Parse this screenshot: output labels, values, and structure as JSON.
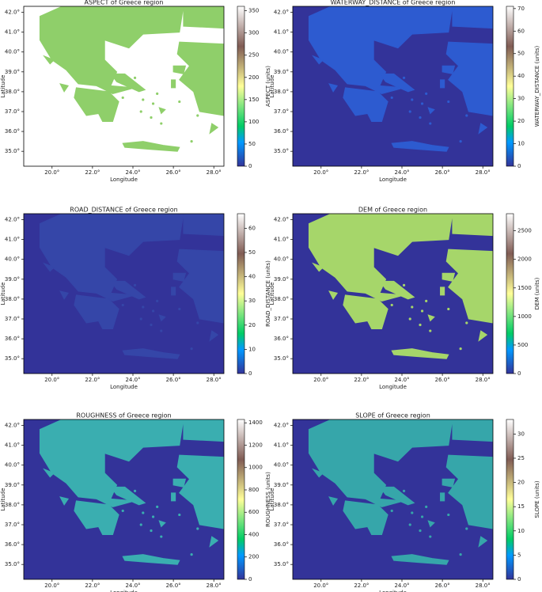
{
  "chart_data": [
    {
      "type": "heatmap",
      "title": "ASPECT of Greece region",
      "x_label": "Longitude",
      "y_label": "Latitude",
      "colorbar_label": "ASPECT (units)",
      "colormap": "terrain",
      "background": "#ffffff",
      "land_color": "#8fcf6a",
      "xlim": [
        18.6,
        28.5
      ],
      "ylim": [
        34.25,
        42.3
      ],
      "xticks": [
        {
          "value": 20,
          "label": "20.0°"
        },
        {
          "value": 22,
          "label": "22.0°"
        },
        {
          "value": 24,
          "label": "24.0°"
        },
        {
          "value": 26,
          "label": "26.0°"
        },
        {
          "value": 28,
          "label": "28.0°"
        }
      ],
      "yticks": [
        {
          "value": 35,
          "label": "35.0°"
        },
        {
          "value": 36,
          "label": "36.0°"
        },
        {
          "value": 37,
          "label": "37.0°"
        },
        {
          "value": 38,
          "label": "38.0°"
        },
        {
          "value": 39,
          "label": "39.0°"
        },
        {
          "value": 40,
          "label": "40.0°"
        },
        {
          "value": 41,
          "label": "41.0°"
        },
        {
          "value": 42,
          "label": "42.0°"
        }
      ],
      "clim": [
        0,
        360
      ],
      "cticks": [
        0,
        50,
        100,
        150,
        200,
        250,
        300,
        350
      ]
    },
    {
      "type": "heatmap",
      "title": "WATERWAY_DISTANCE of Greece region",
      "x_label": "Longitude",
      "y_label": "Latitude",
      "colorbar_label": "WATERWAY_DISTANCE (units)",
      "colormap": "terrain",
      "background": "#333399",
      "land_color": "#2d5bd0",
      "xlim": [
        18.6,
        28.5
      ],
      "ylim": [
        34.25,
        42.3
      ],
      "xticks": [
        {
          "value": 20,
          "label": "20.0°"
        },
        {
          "value": 22,
          "label": "22.0°"
        },
        {
          "value": 24,
          "label": "24.0°"
        },
        {
          "value": 26,
          "label": "26.0°"
        },
        {
          "value": 28,
          "label": "28.0°"
        }
      ],
      "yticks": [
        {
          "value": 35,
          "label": "35.0°"
        },
        {
          "value": 36,
          "label": "36.0°"
        },
        {
          "value": 37,
          "label": "37.0°"
        },
        {
          "value": 38,
          "label": "38.0°"
        },
        {
          "value": 39,
          "label": "39.0°"
        },
        {
          "value": 40,
          "label": "40.0°"
        },
        {
          "value": 41,
          "label": "41.0°"
        },
        {
          "value": 42,
          "label": "42.0°"
        }
      ],
      "clim": [
        0,
        71
      ],
      "cticks": [
        0,
        10,
        20,
        30,
        40,
        50,
        60,
        70
      ]
    },
    {
      "type": "heatmap",
      "title": "ROAD_DISTANCE of Greece region",
      "x_label": "Longitude",
      "y_label": "Latitude",
      "colorbar_label": "ROAD_DISTANCE (units)",
      "colormap": "terrain",
      "background": "#333399",
      "land_color": "#3546a8",
      "xlim": [
        18.6,
        28.5
      ],
      "ylim": [
        34.25,
        42.3
      ],
      "xticks": [
        {
          "value": 20,
          "label": "20.0°"
        },
        {
          "value": 22,
          "label": "22.0°"
        },
        {
          "value": 24,
          "label": "24.0°"
        },
        {
          "value": 26,
          "label": "26.0°"
        },
        {
          "value": 28,
          "label": "28.0°"
        }
      ],
      "yticks": [
        {
          "value": 35,
          "label": "35.0°"
        },
        {
          "value": 36,
          "label": "36.0°"
        },
        {
          "value": 37,
          "label": "37.0°"
        },
        {
          "value": 38,
          "label": "38.0°"
        },
        {
          "value": 39,
          "label": "39.0°"
        },
        {
          "value": 40,
          "label": "40.0°"
        },
        {
          "value": 41,
          "label": "41.0°"
        },
        {
          "value": 42,
          "label": "42.0°"
        }
      ],
      "clim": [
        0,
        66
      ],
      "cticks": [
        0,
        10,
        20,
        30,
        40,
        50,
        60
      ]
    },
    {
      "type": "heatmap",
      "title": "DEM of Greece region",
      "x_label": "Longitude",
      "y_label": "Latitude",
      "colorbar_label": "DEM (units)",
      "colormap": "terrain",
      "background": "#333399",
      "land_color": "#a6d66a",
      "xlim": [
        18.6,
        28.5
      ],
      "ylim": [
        34.25,
        42.3
      ],
      "xticks": [
        {
          "value": 20,
          "label": "20.0°"
        },
        {
          "value": 22,
          "label": "22.0°"
        },
        {
          "value": 24,
          "label": "24.0°"
        },
        {
          "value": 26,
          "label": "26.0°"
        },
        {
          "value": 28,
          "label": "28.0°"
        }
      ],
      "yticks": [
        {
          "value": 35,
          "label": "35.0°"
        },
        {
          "value": 36,
          "label": "36.0°"
        },
        {
          "value": 37,
          "label": "37.0°"
        },
        {
          "value": 38,
          "label": "38.0°"
        },
        {
          "value": 39,
          "label": "39.0°"
        },
        {
          "value": 40,
          "label": "40.0°"
        },
        {
          "value": 41,
          "label": "41.0°"
        },
        {
          "value": 42,
          "label": "42.0°"
        }
      ],
      "clim": [
        0,
        2800
      ],
      "cticks": [
        0,
        500,
        1000,
        1500,
        2000,
        2500
      ]
    },
    {
      "type": "heatmap",
      "title": "ROUGHNESS of Greece region",
      "x_label": "Longitude",
      "y_label": "Latitude",
      "colorbar_label": "ROUGHNESS (units)",
      "colormap": "terrain",
      "background": "#333399",
      "land_color": "#3aaeb0",
      "xlim": [
        18.6,
        28.5
      ],
      "ylim": [
        34.25,
        42.3
      ],
      "xticks": [
        {
          "value": 20,
          "label": "20.0°"
        },
        {
          "value": 22,
          "label": "22.0°"
        },
        {
          "value": 24,
          "label": "24.0°"
        },
        {
          "value": 26,
          "label": "26.0°"
        },
        {
          "value": 28,
          "label": "28.0°"
        }
      ],
      "yticks": [
        {
          "value": 35,
          "label": "35.0°"
        },
        {
          "value": 36,
          "label": "36.0°"
        },
        {
          "value": 37,
          "label": "37.0°"
        },
        {
          "value": 38,
          "label": "38.0°"
        },
        {
          "value": 39,
          "label": "39.0°"
        },
        {
          "value": 40,
          "label": "40.0°"
        },
        {
          "value": 41,
          "label": "41.0°"
        },
        {
          "value": 42,
          "label": "42.0°"
        }
      ],
      "clim": [
        0,
        1430
      ],
      "cticks": [
        0,
        200,
        400,
        600,
        800,
        1000,
        1200,
        1400
      ]
    },
    {
      "type": "heatmap",
      "title": "SLOPE of Greece region",
      "x_label": "Longitude",
      "y_label": "Latitude",
      "colorbar_label": "SLOPE (units)",
      "colormap": "terrain",
      "background": "#333399",
      "land_color": "#36a6aa",
      "xlim": [
        18.6,
        28.5
      ],
      "ylim": [
        34.25,
        42.3
      ],
      "xticks": [
        {
          "value": 20,
          "label": "20.0°"
        },
        {
          "value": 22,
          "label": "22.0°"
        },
        {
          "value": 24,
          "label": "24.0°"
        },
        {
          "value": 26,
          "label": "26.0°"
        },
        {
          "value": 28,
          "label": "28.0°"
        }
      ],
      "yticks": [
        {
          "value": 35,
          "label": "35.0°"
        },
        {
          "value": 36,
          "label": "36.0°"
        },
        {
          "value": 37,
          "label": "37.0°"
        },
        {
          "value": 38,
          "label": "38.0°"
        },
        {
          "value": 39,
          "label": "39.0°"
        },
        {
          "value": 40,
          "label": "40.0°"
        },
        {
          "value": 41,
          "label": "41.0°"
        },
        {
          "value": 42,
          "label": "42.0°"
        }
      ],
      "clim": [
        0,
        33
      ],
      "cticks": [
        0,
        5,
        10,
        15,
        20,
        25,
        30
      ]
    }
  ]
}
